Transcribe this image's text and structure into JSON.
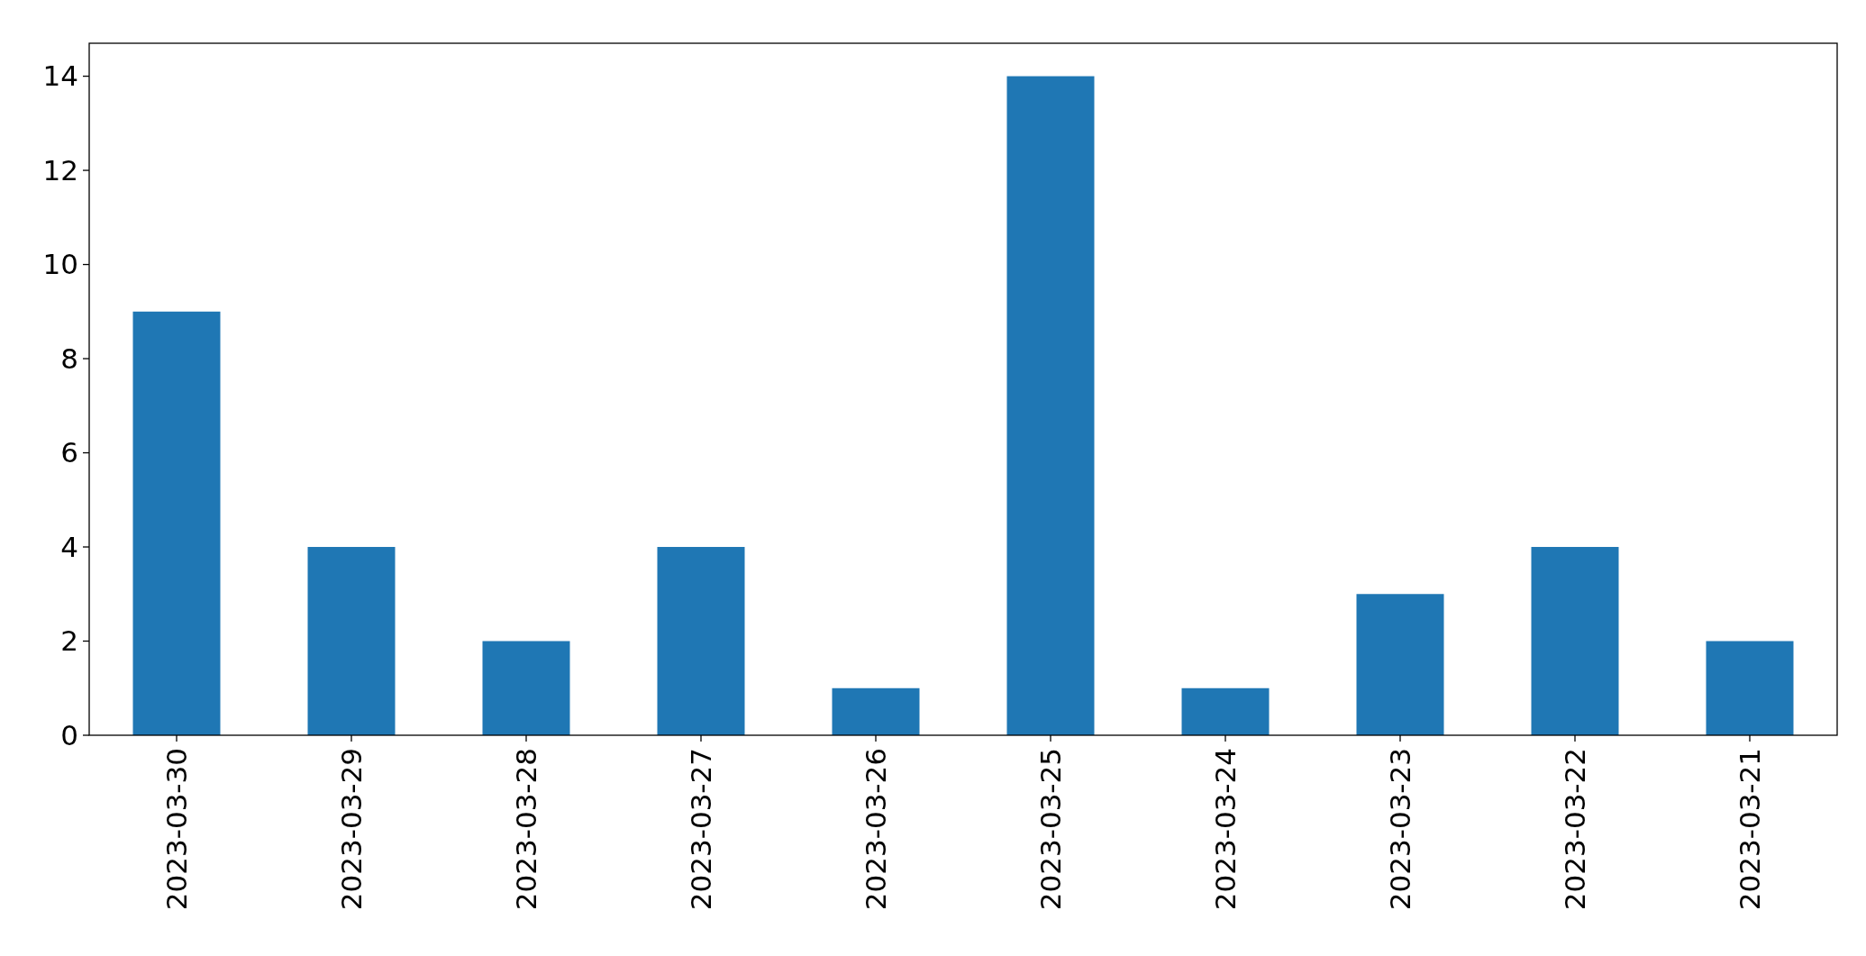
{
  "chart_data": {
    "type": "bar",
    "categories": [
      "2023-03-30",
      "2023-03-29",
      "2023-03-28",
      "2023-03-27",
      "2023-03-26",
      "2023-03-25",
      "2023-03-24",
      "2023-03-23",
      "2023-03-22",
      "2023-03-21"
    ],
    "values": [
      9,
      4,
      2,
      4,
      1,
      14,
      1,
      3,
      4,
      2
    ],
    "color": "#1f77b4",
    "ylim": [
      0,
      14.7
    ],
    "yticks": [
      0,
      2,
      4,
      6,
      8,
      10,
      12,
      14
    ],
    "grid": false
  }
}
